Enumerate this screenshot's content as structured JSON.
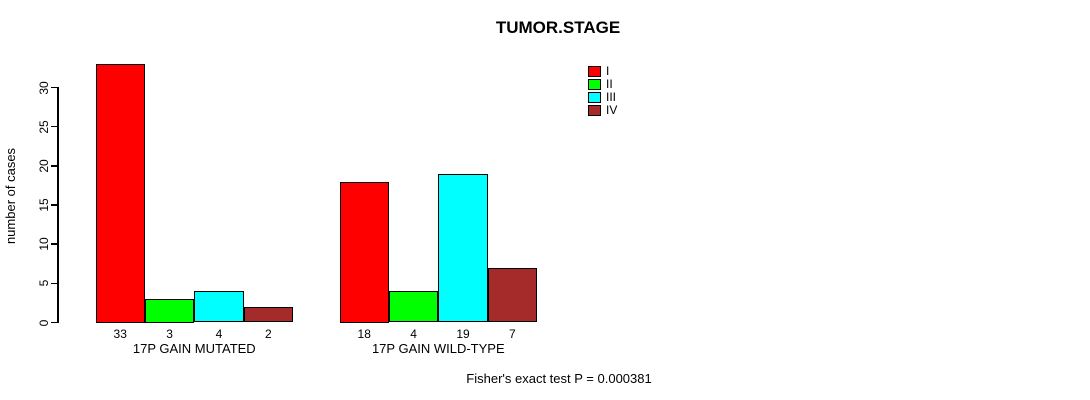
{
  "chart_data": {
    "type": "bar",
    "title": "TUMOR.STAGE",
    "xlabel": "",
    "ylabel": "number of cases",
    "ylim": [
      0,
      33
    ],
    "yticks": [
      0,
      5,
      10,
      15,
      20,
      25,
      30
    ],
    "grid": false,
    "legend_position": "top-right-inside",
    "categories": [
      "17P GAIN MUTATED",
      "17P GAIN WILD-TYPE"
    ],
    "series": [
      {
        "name": "I",
        "color": "#ff0000",
        "values": [
          33,
          18
        ]
      },
      {
        "name": "II",
        "color": "#00ff00",
        "values": [
          3,
          4
        ]
      },
      {
        "name": "III",
        "color": "#00ffff",
        "values": [
          4,
          19
        ]
      },
      {
        "name": "IV",
        "color": "#a52a2a",
        "values": [
          2,
          7
        ]
      }
    ],
    "bar_value_labels": [
      [
        "33",
        "3",
        "4",
        "2"
      ],
      [
        "18",
        "4",
        "19",
        "7"
      ]
    ],
    "annotation": "Fisher's exact test P = 0.000381"
  },
  "colors": {
    "stage_I": "#ff0000",
    "stage_II": "#00ff00",
    "stage_III": "#00ffff",
    "stage_IV": "#a52a2a",
    "axis": "#000000",
    "background": "#ffffff"
  }
}
